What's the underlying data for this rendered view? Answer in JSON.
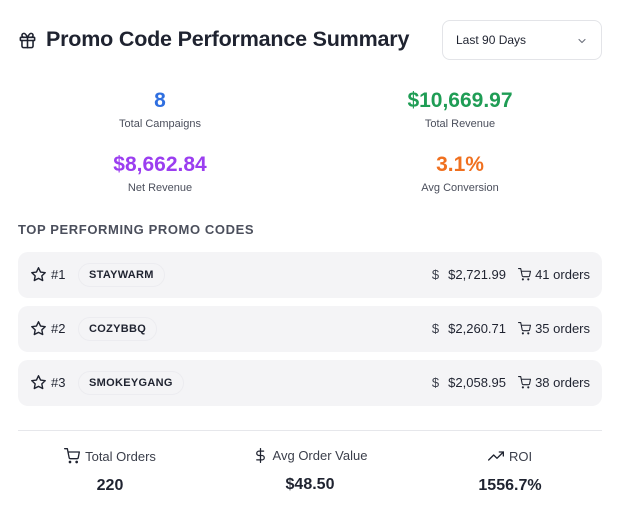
{
  "header": {
    "title": "Promo Code Performance Summary",
    "icon": "gift-icon",
    "date_range": {
      "selected": "Last 90 Days"
    }
  },
  "stats": [
    {
      "value": "8",
      "label": "Total Campaigns",
      "color": "#2f6fe0"
    },
    {
      "value": "$10,669.97",
      "label": "Total Revenue",
      "color": "#1f9d55"
    },
    {
      "value": "$8,662.84",
      "label": "Net Revenue",
      "color": "#9b3ef0"
    },
    {
      "value": "3.1%",
      "label": "Avg Conversion",
      "color": "#f0701f"
    }
  ],
  "top_codes": {
    "title": "TOP PERFORMING PROMO CODES",
    "rows": [
      {
        "rank": "#1",
        "code": "STAYWARM",
        "revenue": "$2,721.99",
        "orders": "41 orders"
      },
      {
        "rank": "#2",
        "code": "COZYBBQ",
        "revenue": "$2,260.71",
        "orders": "35 orders"
      },
      {
        "rank": "#3",
        "code": "SMOKEYGANG",
        "revenue": "$2,058.95",
        "orders": "38 orders"
      }
    ]
  },
  "footer": {
    "total_orders": {
      "label": "Total Orders",
      "value": "220",
      "icon": "cart-icon"
    },
    "avg_order_value": {
      "label": "Avg Order Value",
      "value": "$48.50",
      "icon": "dollar-icon"
    },
    "roi": {
      "label": "ROI",
      "value": "1556.7%",
      "icon": "trending-up-icon"
    }
  }
}
